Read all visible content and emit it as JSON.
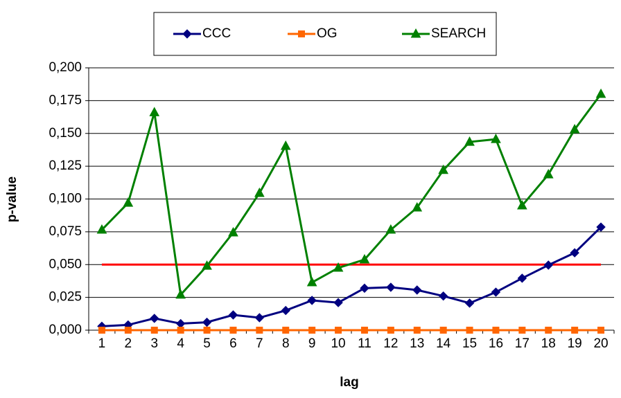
{
  "chart_data": {
    "type": "line",
    "x_label": "lag",
    "y_label": "p-value",
    "categories": [
      "1",
      "2",
      "3",
      "4",
      "5",
      "6",
      "7",
      "8",
      "9",
      "10",
      "11",
      "12",
      "13",
      "14",
      "15",
      "16",
      "17",
      "18",
      "19",
      "20"
    ],
    "series": [
      {
        "name": "CCC",
        "color": "#000080",
        "marker": "diamond",
        "values": [
          0.003,
          0.004,
          0.009,
          0.005,
          0.006,
          0.0116,
          0.0095,
          0.015,
          0.0227,
          0.021,
          0.032,
          0.0327,
          0.0306,
          0.026,
          0.0206,
          0.029,
          0.0396,
          0.0496,
          0.059,
          0.0786
        ]
      },
      {
        "name": "OG",
        "color": "#ff6600",
        "marker": "square",
        "values": [
          0,
          0,
          0,
          0,
          0,
          0,
          0,
          0,
          0,
          0,
          0,
          0,
          0,
          0,
          0,
          0,
          0,
          0,
          0,
          0
        ]
      },
      {
        "name": "SEARCH",
        "color": "#008000",
        "marker": "triangle",
        "values": [
          0.0765,
          0.097,
          0.166,
          0.027,
          0.049,
          0.0744,
          0.1045,
          0.1404,
          0.0364,
          0.0475,
          0.0538,
          0.0765,
          0.0934,
          0.122,
          0.1435,
          0.1456,
          0.095,
          0.1187,
          0.153,
          0.18
        ]
      }
    ],
    "threshold": 0.05,
    "threshold_color": "#ff0000",
    "ylim": [
      0,
      0.2
    ],
    "yticks": [
      {
        "value": 0,
        "label": "0,000"
      },
      {
        "value": 0.025,
        "label": "0,025"
      },
      {
        "value": 0.05,
        "label": "0,050"
      },
      {
        "value": 0.075,
        "label": "0,075"
      },
      {
        "value": 0.1,
        "label": "0,100"
      },
      {
        "value": 0.125,
        "label": "0,125"
      },
      {
        "value": 0.15,
        "label": "0,150"
      },
      {
        "value": 0.175,
        "label": "0,175"
      },
      {
        "value": 0.2,
        "label": "0,200"
      }
    ],
    "grid": true,
    "legend": "top"
  }
}
